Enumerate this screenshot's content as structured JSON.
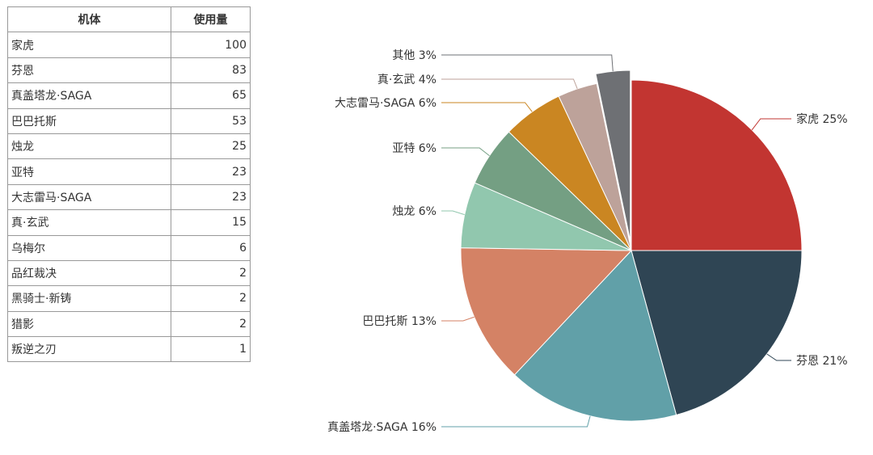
{
  "table": {
    "headers": [
      "机体",
      "使用量"
    ],
    "rows": [
      [
        "家虎",
        "100"
      ],
      [
        "芬恩",
        "83"
      ],
      [
        "真盖塔龙·SAGA",
        "65"
      ],
      [
        "巴巴托斯",
        "53"
      ],
      [
        "烛龙",
        "25"
      ],
      [
        "亚特",
        "23"
      ],
      [
        "大志雷马·SAGA",
        "23"
      ],
      [
        "真·玄武",
        "15"
      ],
      [
        "乌梅尔",
        "6"
      ],
      [
        "品红裁决",
        "2"
      ],
      [
        "黑骑士·新铸",
        "2"
      ],
      [
        "猎影",
        "2"
      ],
      [
        "叛逆之刃",
        "1"
      ]
    ]
  },
  "chart_data": {
    "type": "pie",
    "start": "top, clockwise",
    "slices": [
      {
        "name": "家虎",
        "value": 100,
        "label": "家虎 25%",
        "color": "#c23531"
      },
      {
        "name": "芬恩",
        "value": 83,
        "label": "芬恩 21%",
        "color": "#2f4554"
      },
      {
        "name": "真盖塔龙·SAGA",
        "value": 65,
        "label": "真盖塔龙·SAGA 16%",
        "color": "#61a0a8"
      },
      {
        "name": "巴巴托斯",
        "value": 53,
        "label": "巴巴托斯 13%",
        "color": "#d48265"
      },
      {
        "name": "烛龙",
        "value": 25,
        "label": "烛龙 6%",
        "color": "#91c7ae"
      },
      {
        "name": "亚特",
        "value": 23,
        "label": "亚特 6%",
        "color": "#749f83"
      },
      {
        "name": "大志雷马·SAGA",
        "value": 23,
        "label": "大志雷马·SAGA 6%",
        "color": "#ca8622"
      },
      {
        "name": "真·玄武",
        "value": 15,
        "label": "真·玄武 4%",
        "color": "#bda29a"
      },
      {
        "name": "其他",
        "value": 13,
        "label": "其他 3%",
        "color": "#6e7074",
        "exploded": true
      }
    ]
  }
}
